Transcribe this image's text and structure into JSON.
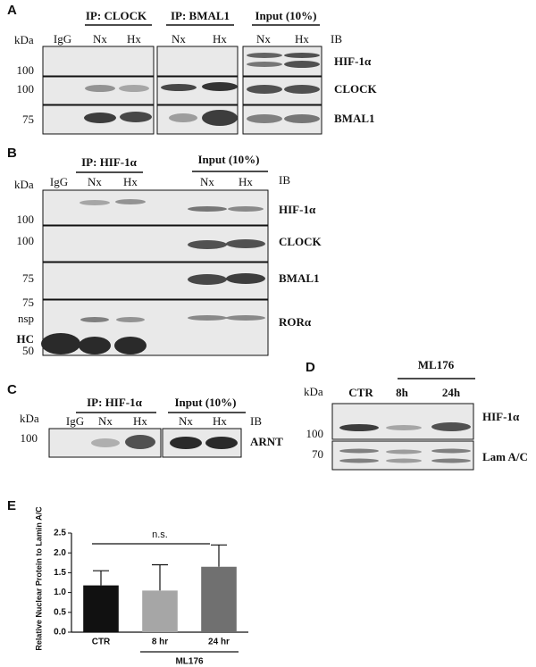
{
  "panel_a": {
    "letter": "A",
    "kda": "kDa",
    "groups": [
      "IP: CLOCK",
      "IP: BMAL1",
      "Input (10%)"
    ],
    "lanes": [
      "IgG",
      "Nx",
      "Hx",
      "Nx",
      "Hx",
      "Nx",
      "Hx"
    ],
    "ib": "IB",
    "rows": [
      {
        "marker": "100",
        "label": "HIF-1α"
      },
      {
        "marker": "100",
        "label": "CLOCK"
      },
      {
        "marker": "75",
        "label": "BMAL1"
      }
    ]
  },
  "panel_b": {
    "letter": "B",
    "kda": "kDa",
    "groups": [
      "IP: HIF-1α",
      "Input (10%)"
    ],
    "lanes": [
      "IgG",
      "Nx",
      "Hx",
      "Nx",
      "Hx"
    ],
    "ib": "IB",
    "rows": [
      {
        "marker": "100",
        "label": "HIF-1α"
      },
      {
        "marker": "100",
        "label": "CLOCK"
      },
      {
        "marker": "75",
        "label": "BMAL1"
      }
    ],
    "ror_markers": [
      "75",
      "nsp",
      "HC",
      "50"
    ],
    "ror_label": "RORα"
  },
  "panel_c": {
    "letter": "C",
    "kda": "kDa",
    "groups": [
      "IP: HIF-1α",
      "Input (10%)"
    ],
    "lanes": [
      "IgG",
      "Nx",
      "Hx",
      "Nx",
      "Hx"
    ],
    "ib": "IB",
    "marker": "100",
    "label": "ARNT"
  },
  "panel_d": {
    "letter": "D",
    "kda": "kDa",
    "group": "ML176",
    "lanes": [
      "CTR",
      "8h",
      "24h"
    ],
    "rows": [
      {
        "marker": "100",
        "label": "HIF-1α"
      },
      {
        "marker": "70",
        "label": "Lam A/C"
      }
    ]
  },
  "chart_data": {
    "type": "bar",
    "letter": "E",
    "y_label": "Relative Nuclear Protein to Lamin A/C",
    "categories": [
      "CTR",
      "8 hr",
      "24 hr"
    ],
    "values": [
      1.18,
      1.05,
      1.65
    ],
    "errors": [
      0.37,
      0.65,
      0.55
    ],
    "colors": [
      "#111111",
      "#a6a6a6",
      "#707070"
    ],
    "group_label": "ML176",
    "annotation": "n.s.",
    "ylim": [
      0,
      2.5
    ],
    "yticks": [
      {
        "value": 0,
        "label": "0.0"
      },
      0.5,
      {
        "value": 1,
        "label": "1.0"
      },
      1.5,
      {
        "value": 2,
        "label": "2.0"
      },
      2.5
    ]
  }
}
